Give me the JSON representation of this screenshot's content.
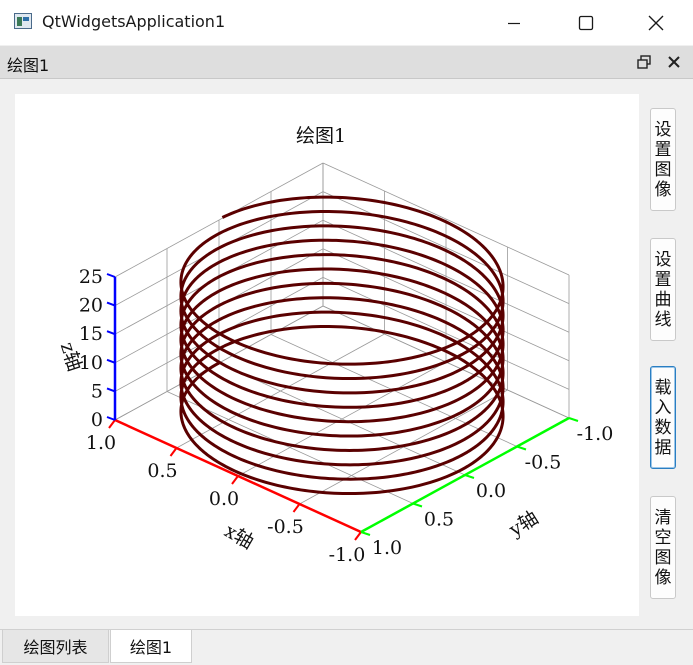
{
  "window": {
    "title": "QtWidgetsApplication1"
  },
  "dock": {
    "title": "绘图1"
  },
  "side_buttons": [
    {
      "label": "设置图像"
    },
    {
      "label": "设置曲线"
    },
    {
      "label": "载入数据"
    },
    {
      "label": "清空图像"
    }
  ],
  "tabs": [
    {
      "label": "绘图列表"
    },
    {
      "label": "绘图1"
    }
  ],
  "colors": {
    "x_axis": "#ff0000",
    "y_axis": "#00ff00",
    "z_axis": "#0000ff",
    "curve": "#5a0000",
    "grid": "#9a9a9a"
  },
  "chart_data": {
    "type": "line",
    "projection": "3d",
    "title": "绘图1",
    "xlabel": "x轴",
    "ylabel": "y轴",
    "zlabel": "z轴",
    "x_ticks": [
      "1.0",
      "0.5",
      "0.0",
      "-0.5",
      "-1.0"
    ],
    "y_ticks": [
      "1.0",
      "0.5",
      "0.0",
      "-0.5",
      "-1.0"
    ],
    "z_ticks": [
      "0",
      "5",
      "10",
      "15",
      "20",
      "25"
    ],
    "xlim": [
      -1.0,
      1.0
    ],
    "ylim": [
      -1.0,
      1.0
    ],
    "zlim": [
      0,
      25
    ],
    "grid": true,
    "series": [
      {
        "equation": "x = cos(t), y = sin(t), z = 0.4·t",
        "t_range": [
          0,
          62.8
        ]
      }
    ]
  }
}
